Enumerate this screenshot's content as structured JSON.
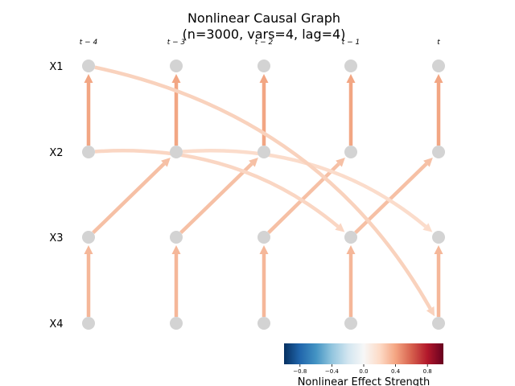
{
  "title_line1": "Nonlinear Causal Graph",
  "title_line2": "(n=3000, vars=4, lag=4)",
  "variables": [
    "X1",
    "X2",
    "X3",
    "X4"
  ],
  "time_labels": [
    "t − 4",
    "t − 3",
    "t − 2",
    "t − 1",
    "t"
  ],
  "node_color": "#d3d3d3",
  "edges": [
    {
      "from": [
        "X2",
        0
      ],
      "to": [
        "X1",
        0
      ],
      "strength": 0.5,
      "color": "#f2a683"
    },
    {
      "from": [
        "X2",
        1
      ],
      "to": [
        "X1",
        1
      ],
      "strength": 0.5,
      "color": "#f2a683"
    },
    {
      "from": [
        "X2",
        2
      ],
      "to": [
        "X1",
        2
      ],
      "strength": 0.5,
      "color": "#f2a683"
    },
    {
      "from": [
        "X2",
        3
      ],
      "to": [
        "X1",
        3
      ],
      "strength": 0.5,
      "color": "#f2a683"
    },
    {
      "from": [
        "X2",
        4
      ],
      "to": [
        "X1",
        4
      ],
      "strength": 0.5,
      "color": "#f2a683"
    },
    {
      "from": [
        "X4",
        0
      ],
      "to": [
        "X3",
        0
      ],
      "strength": 0.38,
      "color": "#f5b799"
    },
    {
      "from": [
        "X4",
        1
      ],
      "to": [
        "X3",
        1
      ],
      "strength": 0.38,
      "color": "#f5b799"
    },
    {
      "from": [
        "X4",
        2
      ],
      "to": [
        "X3",
        2
      ],
      "strength": 0.38,
      "color": "#f5b799"
    },
    {
      "from": [
        "X4",
        3
      ],
      "to": [
        "X3",
        3
      ],
      "strength": 0.38,
      "color": "#f5b799"
    },
    {
      "from": [
        "X4",
        4
      ],
      "to": [
        "X3",
        4
      ],
      "strength": 0.38,
      "color": "#f5b799"
    },
    {
      "from": [
        "X3",
        0
      ],
      "to": [
        "X2",
        1
      ],
      "strength": 0.32,
      "color": "#f6c0a5"
    },
    {
      "from": [
        "X3",
        1
      ],
      "to": [
        "X2",
        2
      ],
      "strength": 0.32,
      "color": "#f6c0a5"
    },
    {
      "from": [
        "X3",
        2
      ],
      "to": [
        "X2",
        3
      ],
      "strength": 0.32,
      "color": "#f6c0a5"
    },
    {
      "from": [
        "X3",
        3
      ],
      "to": [
        "X2",
        4
      ],
      "strength": 0.32,
      "color": "#f6c0a5"
    },
    {
      "from": [
        "X2",
        0
      ],
      "to": [
        "X3",
        3
      ],
      "strength": 0.2,
      "color": "#fad6c3",
      "curve": -40
    },
    {
      "from": [
        "X2",
        1
      ],
      "to": [
        "X3",
        4
      ],
      "strength": 0.15,
      "color": "#fbdccb",
      "curve": -40
    },
    {
      "from": [
        "X1",
        0
      ],
      "to": [
        "X4",
        4
      ],
      "strength": 0.22,
      "color": "#f9d2bd",
      "curve": -45
    }
  ],
  "colorbar": {
    "label": "Nonlinear Effect Strength",
    "ticks": [
      "−0.8",
      "−0.4",
      "0.0",
      "0.4",
      "0.8"
    ],
    "tick_values": [
      -0.8,
      -0.4,
      0.0,
      0.4,
      0.8
    ],
    "range": [
      -1,
      1
    ],
    "colors": [
      "#053061",
      "#2166ac",
      "#4393c3",
      "#92c5de",
      "#d1e5f0",
      "#f7f7f7",
      "#fddbc7",
      "#f4a582",
      "#d6604d",
      "#b2182b",
      "#67001f"
    ]
  }
}
